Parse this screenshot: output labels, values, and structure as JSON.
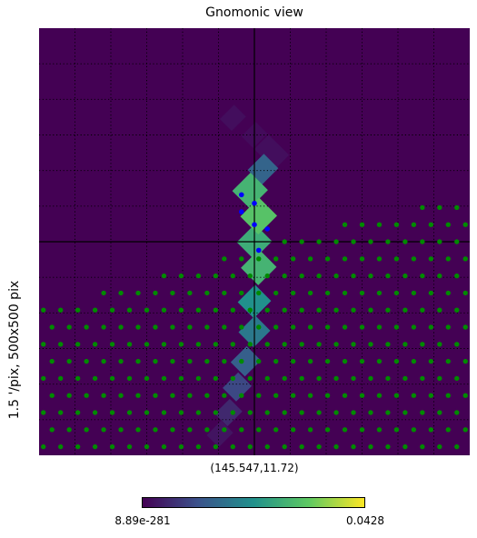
{
  "colors": {
    "background": "#440154",
    "grid": "#000000",
    "point": "#008a00",
    "selected_point": "#0000ff",
    "colormap": [
      "#440154",
      "#3b528b",
      "#21918c",
      "#5ec962",
      "#fde725"
    ]
  },
  "chart_data": {
    "type": "heatmap",
    "projection": "gnomonic",
    "title": "Gnomonic view",
    "ylabel": "1.5 '/pix,   500x500 pix",
    "center_label": "(145.547,11.72)",
    "grid": true,
    "grid_style": "dotted",
    "crosshair": true,
    "colorbar": {
      "min_label": "8.89e-281",
      "max_label": "0.0428",
      "colormap": "viridis",
      "position": "bottom"
    },
    "probability_band": [
      {
        "u": 0.53,
        "v": 0.72,
        "value": 0.04
      },
      {
        "u": 0.55,
        "v": 0.7,
        "value": 0.04
      },
      {
        "u": 0.5,
        "v": 0.75,
        "value": 0.03
      },
      {
        "u": 0.52,
        "v": 0.67,
        "value": 0.32
      },
      {
        "u": 0.5,
        "v": 0.5,
        "value": 0.62
      },
      {
        "u": 0.49,
        "v": 0.62,
        "value": 0.65
      },
      {
        "u": 0.51,
        "v": 0.56,
        "value": 0.72
      },
      {
        "u": 0.51,
        "v": 0.44,
        "value": 0.65
      },
      {
        "u": 0.5,
        "v": 0.36,
        "value": 0.5
      },
      {
        "u": 0.5,
        "v": 0.29,
        "value": 0.4
      },
      {
        "u": 0.48,
        "v": 0.22,
        "value": 0.3
      },
      {
        "u": 0.46,
        "v": 0.16,
        "value": 0.22
      },
      {
        "u": 0.44,
        "v": 0.1,
        "value": 0.12
      },
      {
        "u": 0.42,
        "v": 0.05,
        "value": 0.06
      },
      {
        "u": 0.45,
        "v": 0.79,
        "value": 0.04
      }
    ],
    "highlighted_points": [
      {
        "x": 0.47,
        "y": 0.61
      },
      {
        "x": 0.5,
        "y": 0.59
      },
      {
        "x": 0.47,
        "y": 0.57
      },
      {
        "x": 0.53,
        "y": 0.53
      },
      {
        "x": 0.5,
        "y": 0.54
      },
      {
        "x": 0.51,
        "y": 0.48
      }
    ],
    "point_region": "lower-left of the dividing line running from (0, 0.35) to (1, 0.62), plus the dense region below the dividing line on the right",
    "point_spacing": 0.04
  }
}
